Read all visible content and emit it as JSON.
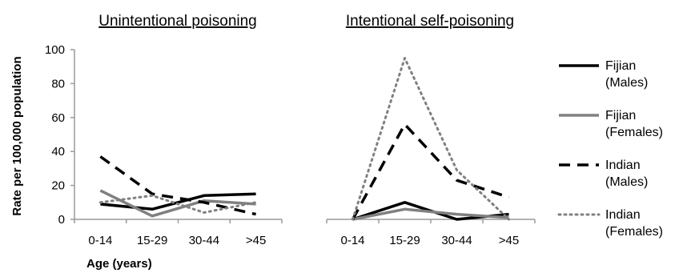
{
  "chart_data": [
    {
      "type": "line",
      "title": "Unintentional poisoning",
      "xlabel": "Age (years)",
      "ylabel": "Rate per 100,000 population",
      "categories": [
        "0-14",
        "15-29",
        "30-44",
        ">45"
      ],
      "ylim": [
        0,
        100
      ],
      "yticks": [
        0,
        20,
        40,
        60,
        80,
        100
      ],
      "grid": false,
      "series": [
        {
          "name": "Fijian (Males)",
          "values": [
            9,
            6,
            14,
            15
          ]
        },
        {
          "name": "Fijian (Females)",
          "values": [
            17,
            2,
            11,
            9
          ]
        },
        {
          "name": "Indian (Males)",
          "values": [
            37,
            15,
            10,
            3
          ]
        },
        {
          "name": "Indian (Females)",
          "values": [
            10,
            14,
            4,
            10
          ]
        }
      ]
    },
    {
      "type": "line",
      "title": "Intentional self-poisoning",
      "xlabel": "",
      "ylabel": "",
      "categories": [
        "0-14",
        "15-29",
        "30-44",
        ">45"
      ],
      "ylim": [
        0,
        100
      ],
      "grid": false,
      "series": [
        {
          "name": "Fijian (Males)",
          "values": [
            0,
            10,
            0,
            3
          ]
        },
        {
          "name": "Fijian (Females)",
          "values": [
            0,
            6,
            3,
            1
          ]
        },
        {
          "name": "Indian (Males)",
          "values": [
            0,
            56,
            23,
            13
          ]
        },
        {
          "name": "Indian (Females)",
          "values": [
            0,
            95,
            29,
            0
          ]
        }
      ]
    }
  ],
  "legend": {
    "placement": "right",
    "items": [
      {
        "line1": "Fijian",
        "line2": "(Males)",
        "color": "#000000",
        "style": "solid"
      },
      {
        "line1": "Fijian",
        "line2": "(Females)",
        "color": "#808080",
        "style": "solid"
      },
      {
        "line1": "Indian",
        "line2": "(Males)",
        "color": "#000000",
        "style": "dashed"
      },
      {
        "line1": "Indian",
        "line2": "(Females)",
        "color": "#808080",
        "style": "dotted"
      }
    ]
  }
}
